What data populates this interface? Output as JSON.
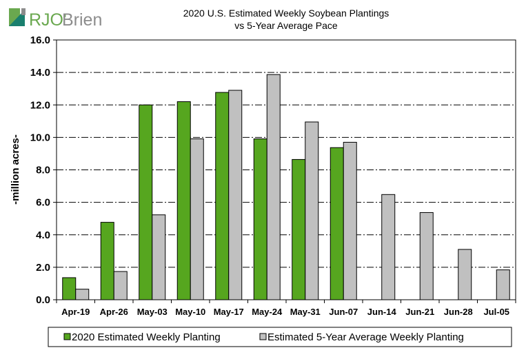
{
  "logo": {
    "text": "RJO'Brien",
    "colors": {
      "green": "#6aa84f",
      "teal": "#1a7f6e",
      "gray": "#8c8c8c"
    }
  },
  "chart_data": {
    "type": "bar",
    "title": [
      "2020 U.S. Estimated Weekly Soybean Plantings",
      "vs 5-Year Average Pace"
    ],
    "ylabel": "-million acres-",
    "xlabel": "",
    "ylim": [
      0,
      16
    ],
    "yticks": [
      "0.0",
      "2.0",
      "4.0",
      "6.0",
      "8.0",
      "10.0",
      "12.0",
      "14.0",
      "16.0"
    ],
    "grid": true,
    "legend_position": "bottom",
    "categories": [
      "Apr-19",
      "Apr-26",
      "May-03",
      "May-10",
      "May-17",
      "May-24",
      "May-31",
      "Jun-07",
      "Jun-14",
      "Jun-21",
      "Jun-28",
      "Jul-05"
    ],
    "series": [
      {
        "name": "2020 Estimated Weekly Planting",
        "color": "#56a61f",
        "values": [
          1.36,
          4.77,
          12.0,
          12.2,
          12.77,
          9.91,
          8.64,
          9.37,
          null,
          null,
          null,
          null
        ]
      },
      {
        "name": "Estimated 5-Year Average Weekly Planting",
        "color": "#c0c0c0",
        "values": [
          0.65,
          1.74,
          5.23,
          9.91,
          12.9,
          13.87,
          10.95,
          9.7,
          6.48,
          5.37,
          3.1,
          1.84
        ]
      }
    ]
  }
}
